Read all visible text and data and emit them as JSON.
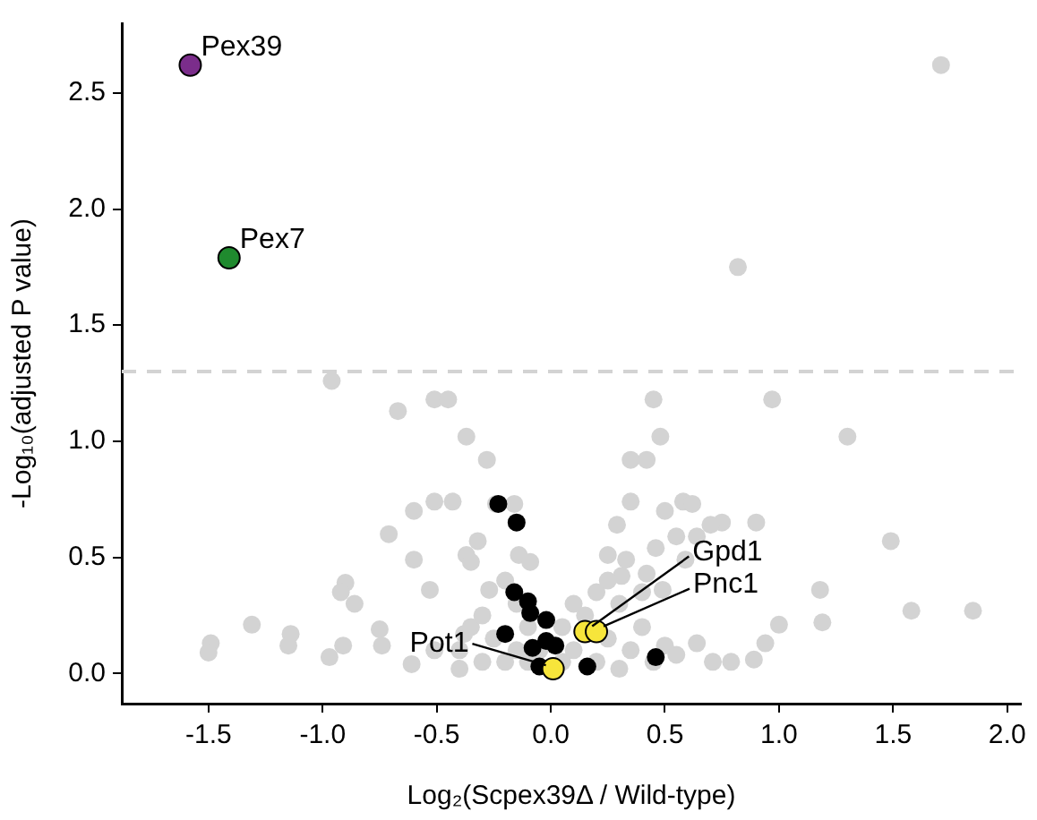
{
  "chart_data": {
    "type": "scatter",
    "xlabel": "Log₂(Scpex39Δ / Wild-type)",
    "ylabel": "-Log₁₀(adjusted P value)",
    "xlim": [
      -1.88,
      2.06
    ],
    "ylim": [
      -0.13,
      2.8
    ],
    "xticks": [
      -1.5,
      {
        "value": -1,
        "label": "-1.0"
      },
      -0.5,
      {
        "value": 0,
        "label": "0.0"
      },
      0.5,
      {
        "value": 1,
        "label": "1.0"
      },
      1.5,
      {
        "value": 2,
        "label": "2.0"
      }
    ],
    "yticks": [
      {
        "value": 0,
        "label": "0.0"
      },
      0.5,
      {
        "value": 1,
        "label": "1.0"
      },
      1.5,
      {
        "value": 2,
        "label": "2.0"
      },
      2.5
    ],
    "grid": false,
    "legend": false,
    "marker": "circle",
    "ref_lines": [
      {
        "axis": "y",
        "value": 1.3,
        "color": "#d3d3d3",
        "line_style": "dashed"
      }
    ],
    "series": [
      {
        "color": "#d3d3d3",
        "x": [
          1.71,
          0.82,
          -0.96,
          -0.67,
          -0.51,
          -0.45,
          -0.37,
          -0.28,
          -0.6,
          -0.51,
          -0.43,
          -0.71,
          -0.6,
          -0.9,
          -0.92,
          -0.86,
          -0.53,
          -1.31,
          -1.49,
          -1.5,
          -1.14,
          -1.15,
          -0.97,
          -0.91,
          -0.75,
          -0.74,
          -0.61,
          -0.51,
          -0.38,
          -0.32,
          -0.37,
          -0.35,
          -0.27,
          -0.14,
          -0.09,
          -0.24,
          -0.16,
          0.45,
          0.97,
          0.48,
          1.3,
          0.35,
          0.42,
          0.35,
          0.5,
          0.58,
          0.62,
          0.75,
          0.9,
          0.7,
          0.29,
          0.64,
          0.55,
          1.49,
          0.46,
          0.59,
          1.18,
          1.58,
          1.85,
          1.19,
          1.0,
          0.94,
          0.89,
          0.79,
          0.71,
          0.64,
          0.49,
          0.42,
          0.33,
          0.25,
          0.31,
          -0.4,
          -0.35,
          -0.3,
          -0.25,
          -0.2,
          -0.15,
          -0.1,
          -0.05,
          0.05,
          0.1,
          0.15,
          0.2,
          0.25,
          0.3,
          0.35,
          0.4,
          0.45,
          0.5,
          0.55,
          0.1,
          0.2,
          -0.2,
          -0.1,
          -0.3,
          0.05,
          0.3,
          -0.15,
          0.25,
          0.4,
          -0.4
        ],
        "values": [
          2.62,
          1.75,
          1.26,
          1.13,
          1.18,
          1.18,
          1.02,
          0.92,
          0.7,
          0.74,
          0.74,
          0.6,
          0.49,
          0.39,
          0.35,
          0.3,
          0.36,
          0.21,
          0.13,
          0.09,
          0.17,
          0.12,
          0.07,
          0.12,
          0.19,
          0.12,
          0.04,
          0.1,
          0.17,
          0.57,
          0.51,
          0.48,
          0.36,
          0.51,
          0.48,
          0.73,
          0.73,
          1.18,
          1.18,
          1.02,
          1.02,
          0.92,
          0.92,
          0.74,
          0.7,
          0.74,
          0.73,
          0.65,
          0.65,
          0.64,
          0.64,
          0.59,
          0.59,
          0.57,
          0.54,
          0.49,
          0.36,
          0.27,
          0.27,
          0.22,
          0.21,
          0.13,
          0.06,
          0.05,
          0.05,
          0.13,
          0.36,
          0.43,
          0.49,
          0.51,
          0.42,
          0.1,
          0.2,
          0.25,
          0.15,
          0.05,
          0.1,
          0.05,
          0.1,
          0.05,
          0.1,
          0.25,
          0.05,
          0.15,
          0.3,
          0.1,
          0.2,
          0.05,
          0.12,
          0.08,
          0.3,
          0.35,
          0.4,
          0.2,
          0.05,
          0.2,
          0.02,
          0.3,
          0.4,
          0.35,
          0.02
        ]
      },
      {
        "color": "#000000",
        "x": [
          -0.23,
          -0.15,
          -0.16,
          -0.1,
          -0.09,
          -0.02,
          -0.2,
          -0.02,
          -0.08,
          -0.05,
          0.46,
          0.16,
          0.02
        ],
        "values": [
          0.73,
          0.65,
          0.35,
          0.31,
          0.26,
          0.23,
          0.17,
          0.14,
          0.11,
          0.03,
          0.07,
          0.03,
          0.12
        ]
      },
      {
        "color": "#f7e53b",
        "x": [
          0.15,
          0.2,
          0.01
        ],
        "values": [
          0.18,
          0.18,
          0.02
        ]
      },
      {
        "color": "#7b2d8b",
        "x": [
          -1.58
        ],
        "values": [
          2.62
        ]
      },
      {
        "color": "#1f8a2e",
        "x": [
          -1.41
        ],
        "values": [
          1.79
        ]
      }
    ],
    "annotations": [
      {
        "text": "Pex39",
        "x": -1.58,
        "y": 2.62
      },
      {
        "text": "Pex7",
        "x": -1.41,
        "y": 1.79
      },
      {
        "text": "Gpd1",
        "x": 0.15,
        "y": 0.18
      },
      {
        "text": "Pnc1",
        "x": 0.2,
        "y": 0.18
      },
      {
        "text": "Pot1",
        "x": 0.01,
        "y": 0.02
      }
    ]
  }
}
